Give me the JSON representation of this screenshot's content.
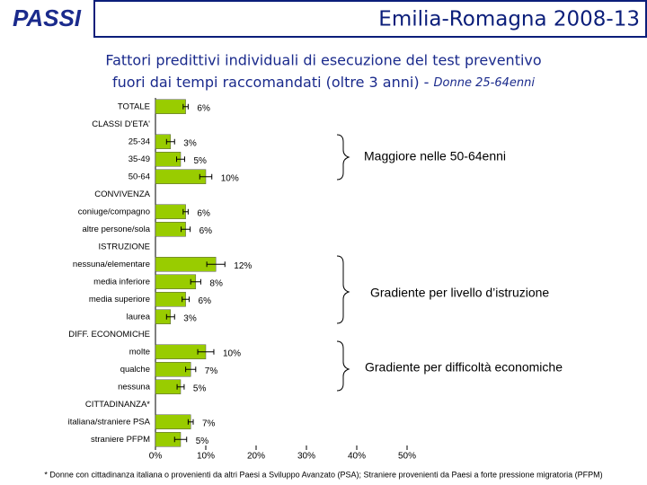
{
  "logo": "PASSI",
  "header": {
    "title": "Emilia-Romagna 2008-13"
  },
  "chart_data": {
    "type": "hbar",
    "title": "Fattori predittivi individuali di esecuzione del test preventivo",
    "subtitle": "fuori dai tempi raccomandati (oltre 3 anni) - ",
    "subtitle_italic": "Donne 25-64enni",
    "categories": [
      "TOTALE",
      "CLASSI D'ETA'",
      "25-34",
      "35-49",
      "50-64",
      "CONVIVENZA",
      "coniuge/compagno",
      "altre persone/sola",
      "ISTRUZIONE",
      "nessuna/elementare",
      "media inferiore",
      "media superiore",
      "laurea",
      "DIFF. ECONOMICHE",
      "molte",
      "qualche",
      "nessuna",
      "CITTADINANZA*",
      "italiana/straniere PSA",
      "straniere PFPM"
    ],
    "values": [
      6,
      null,
      3,
      5,
      10,
      null,
      6,
      6,
      null,
      12,
      8,
      6,
      3,
      null,
      10,
      7,
      5,
      null,
      7,
      5
    ],
    "value_labels": [
      "6%",
      null,
      "3%",
      "5%",
      "10%",
      null,
      "6%",
      "6%",
      null,
      "12%",
      "8%",
      "6%",
      "3%",
      null,
      "10%",
      "7%",
      "5%",
      null,
      "7%",
      "5%"
    ],
    "errors": [
      0.5,
      null,
      0.8,
      0.8,
      1.2,
      null,
      0.5,
      0.9,
      null,
      1.8,
      1,
      0.7,
      0.8,
      null,
      1.6,
      1,
      0.7,
      null,
      0.5,
      1.2
    ],
    "color": "#99cc00",
    "xlim": [
      0,
      50
    ],
    "xticks": [
      {
        "value": 0,
        "label": "0%"
      },
      {
        "value": 10,
        "label": "10%"
      },
      {
        "value": 20,
        "label": "20%"
      },
      {
        "value": 30,
        "label": "30%"
      },
      {
        "value": 40,
        "label": "40%"
      },
      {
        "value": 50,
        "label": "50%"
      }
    ],
    "annotations": [
      "Maggiore nelle 50-64enni",
      "Gradiente per livello d’istruzione",
      "Gradiente per difficoltà economiche"
    ],
    "footnote": "* Donne con cittadinanza italiana o provenienti da altri Paesi a Sviluppo Avanzato (PSA); Straniere provenienti da Paesi a forte pressione migratoria (PFPM)"
  }
}
